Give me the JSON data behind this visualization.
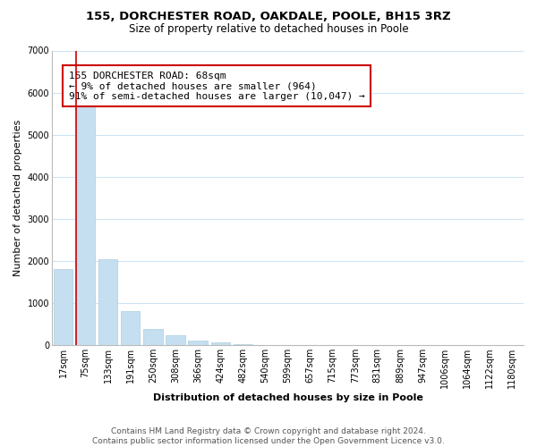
{
  "title": "155, DORCHESTER ROAD, OAKDALE, POOLE, BH15 3RZ",
  "subtitle": "Size of property relative to detached houses in Poole",
  "xlabel": "Distribution of detached houses by size in Poole",
  "ylabel": "Number of detached properties",
  "bar_labels": [
    "17sqm",
    "75sqm",
    "133sqm",
    "191sqm",
    "250sqm",
    "308sqm",
    "366sqm",
    "424sqm",
    "482sqm",
    "540sqm",
    "599sqm",
    "657sqm",
    "715sqm",
    "773sqm",
    "831sqm",
    "889sqm",
    "947sqm",
    "1006sqm",
    "1064sqm",
    "1122sqm",
    "1180sqm"
  ],
  "bar_values": [
    1800,
    5750,
    2050,
    820,
    380,
    240,
    120,
    70,
    30,
    10,
    5,
    2,
    1,
    0,
    0,
    0,
    0,
    0,
    0,
    0,
    0
  ],
  "bar_color": "#c5dff0",
  "bar_edge_color": "#aacce0",
  "marker_color": "#cc0000",
  "annotation_line1": "155 DORCHESTER ROAD: 68sqm",
  "annotation_line2": "← 9% of detached houses are smaller (964)",
  "annotation_line3": "91% of semi-detached houses are larger (10,047) →",
  "annotation_box_color": "#ffffff",
  "annotation_box_edgecolor": "#cc0000",
  "ylim": [
    0,
    7000
  ],
  "yticks": [
    0,
    1000,
    2000,
    3000,
    4000,
    5000,
    6000,
    7000
  ],
  "footer_line1": "Contains HM Land Registry data © Crown copyright and database right 2024.",
  "footer_line2": "Contains public sector information licensed under the Open Government Licence v3.0.",
  "bg_color": "#ffffff",
  "grid_color": "#cde4f5",
  "title_fontsize": 9.5,
  "subtitle_fontsize": 8.5,
  "axis_label_fontsize": 8,
  "tick_fontsize": 7,
  "footer_fontsize": 6.5,
  "annotation_fontsize": 8
}
